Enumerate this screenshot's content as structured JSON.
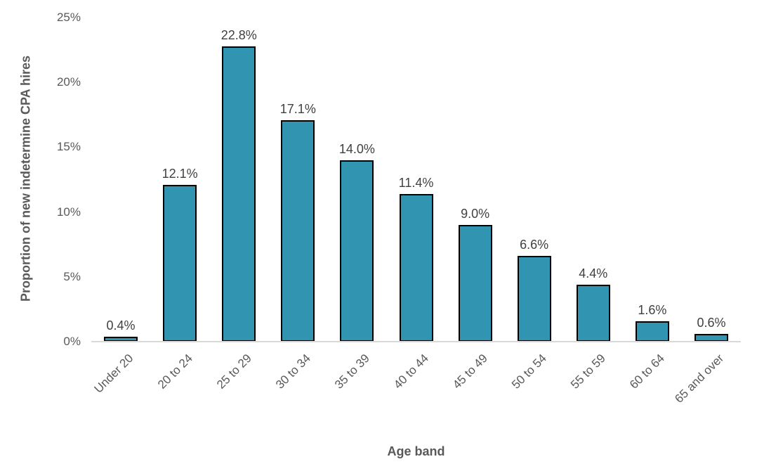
{
  "chart_data": {
    "type": "bar",
    "title": "",
    "xlabel": "Age band",
    "ylabel": "Proportion of new indetermine CPA hires",
    "categories": [
      "Under 20",
      "20 to 24",
      "25 to 29",
      "30 to 34",
      "35 to 39",
      "40 to 44",
      "45 to 49",
      "50 to 54",
      "55 to 59",
      "60 to 64",
      "65 and over"
    ],
    "values": [
      0.4,
      12.1,
      22.8,
      17.1,
      14.0,
      11.4,
      9.0,
      6.6,
      4.4,
      1.6,
      0.6
    ],
    "value_labels": [
      "0.4%",
      "12.1%",
      "22.8%",
      "17.1%",
      "14.0%",
      "11.4%",
      "9.0%",
      "6.6%",
      "4.4%",
      "1.6%",
      "0.6%"
    ],
    "ytick_values": [
      0,
      5,
      10,
      15,
      20,
      25
    ],
    "ytick_labels": [
      "0%",
      "5%",
      "10%",
      "15%",
      "20%",
      "25%"
    ],
    "ylim": [
      0,
      25
    ],
    "grid": false,
    "legend": null,
    "colors": {
      "bar_fill": "#3194B0",
      "bar_border": "#000000",
      "axis_line": "#D9D9D9",
      "tick_label": "#595959",
      "data_label": "#404040",
      "axis_title": "#595959"
    }
  }
}
